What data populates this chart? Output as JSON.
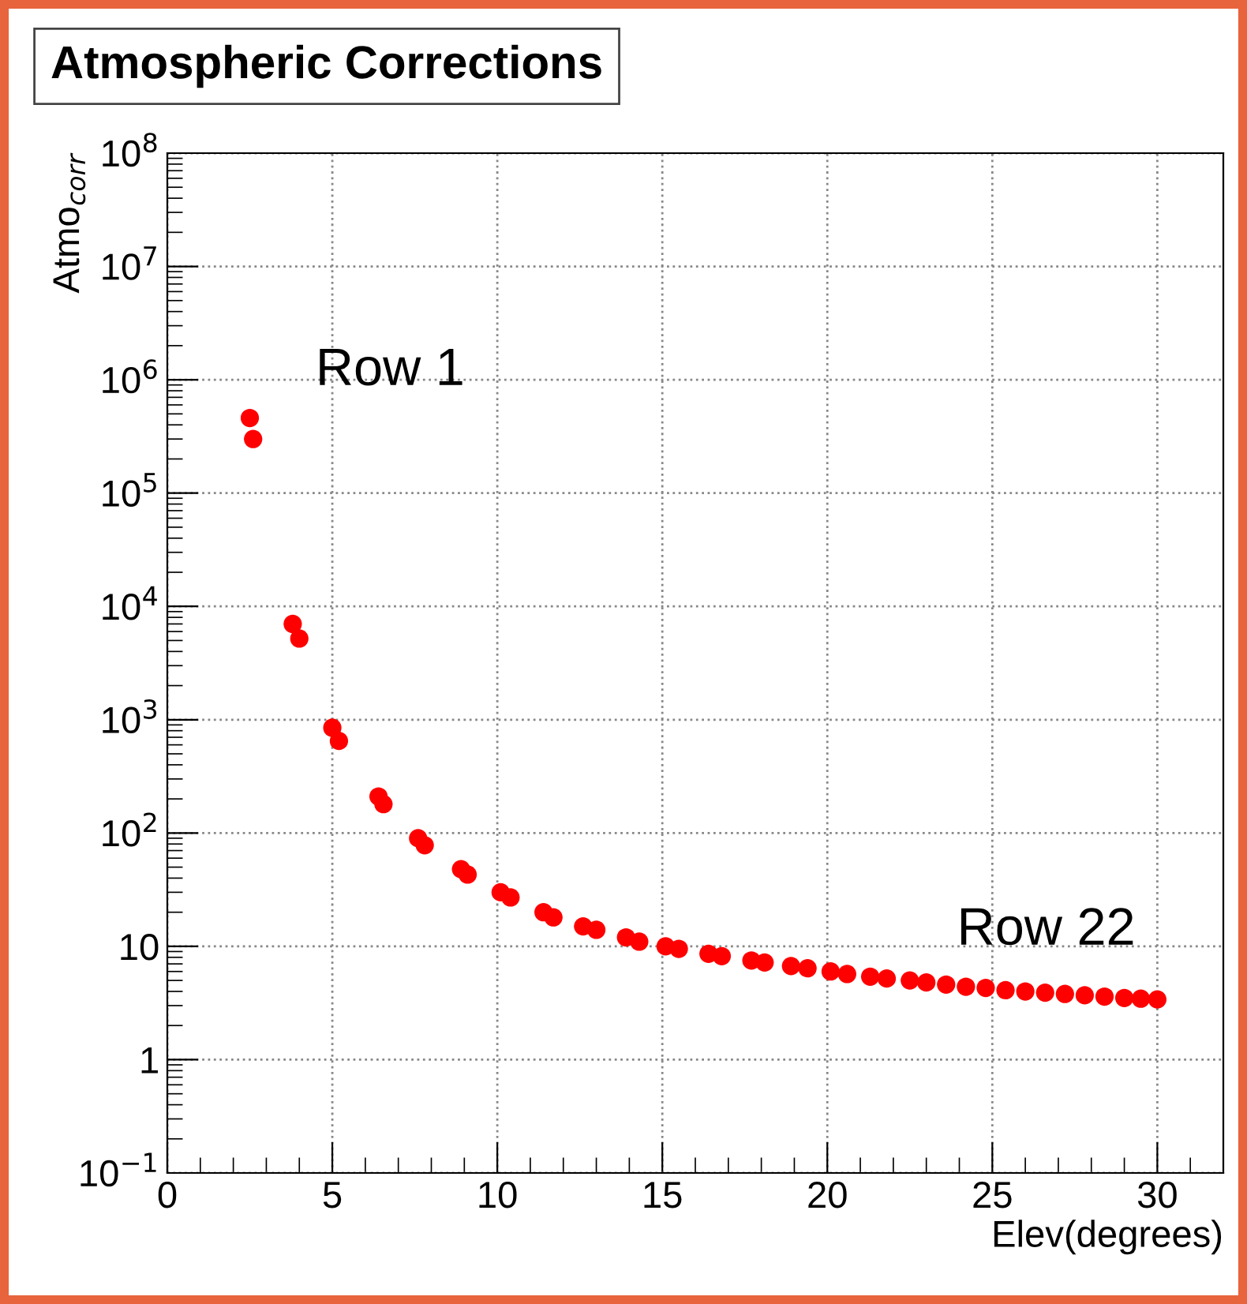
{
  "chart_data": {
    "type": "scatter",
    "title": "Atmospheric Corrections",
    "xlabel": "Elev(degrees)",
    "ylabel": "Atmo$_{corr}$",
    "x": [
      2.5,
      2.6,
      3.8,
      4.0,
      5.0,
      5.2,
      6.4,
      6.55,
      7.6,
      7.8,
      8.9,
      9.1,
      10.1,
      10.4,
      11.4,
      11.7,
      12.6,
      13.0,
      13.9,
      14.3,
      15.1,
      15.5,
      16.4,
      16.8,
      17.7,
      18.1,
      18.9,
      19.4,
      20.1,
      20.6,
      21.3,
      21.8,
      22.5,
      23.0,
      23.6,
      24.2,
      24.8,
      25.4,
      26.0,
      26.6,
      27.2,
      27.8,
      28.4,
      29.0,
      29.5,
      30.0
    ],
    "series": [
      {
        "color": "#ff0000",
        "values": [
          460000,
          300000,
          7000,
          5200,
          850,
          650,
          210,
          180,
          90,
          78,
          48,
          43,
          30,
          27,
          20,
          18,
          15,
          14,
          12,
          11,
          10,
          9.5,
          8.6,
          8.2,
          7.5,
          7.2,
          6.7,
          6.4,
          6.0,
          5.7,
          5.4,
          5.2,
          5.0,
          4.8,
          4.6,
          4.4,
          4.3,
          4.1,
          4.0,
          3.9,
          3.8,
          3.7,
          3.6,
          3.5,
          3.45,
          3.4
        ]
      }
    ],
    "marker": "circle",
    "log": "y",
    "grid": true,
    "xlim": [
      0,
      32
    ],
    "xticks": [
      0,
      5,
      10,
      15,
      20,
      25,
      30
    ],
    "ylim": [
      0.1,
      100000000
    ],
    "yticks": [
      {
        "value": 0.1,
        "label": "10$^{−1}$"
      },
      1,
      10,
      {
        "value": 100,
        "label": "10$^{2}$"
      },
      {
        "value": 1000,
        "label": "10$^{3}$"
      },
      {
        "value": 10000,
        "label": "10$^{4}$"
      },
      {
        "value": 100000,
        "label": "10$^{5}$"
      },
      {
        "value": 1000000,
        "label": "10$^{6}$"
      },
      {
        "value": 10000000,
        "label": "10$^{7}$"
      },
      {
        "value": 100000000,
        "label": "10$^{8}$"
      }
    ],
    "annotations": [
      {
        "text": "Row 1",
        "x": 2.5,
        "y": 460000
      },
      {
        "text": "Row 22",
        "x": 30.0,
        "y": 3.4
      }
    ]
  }
}
